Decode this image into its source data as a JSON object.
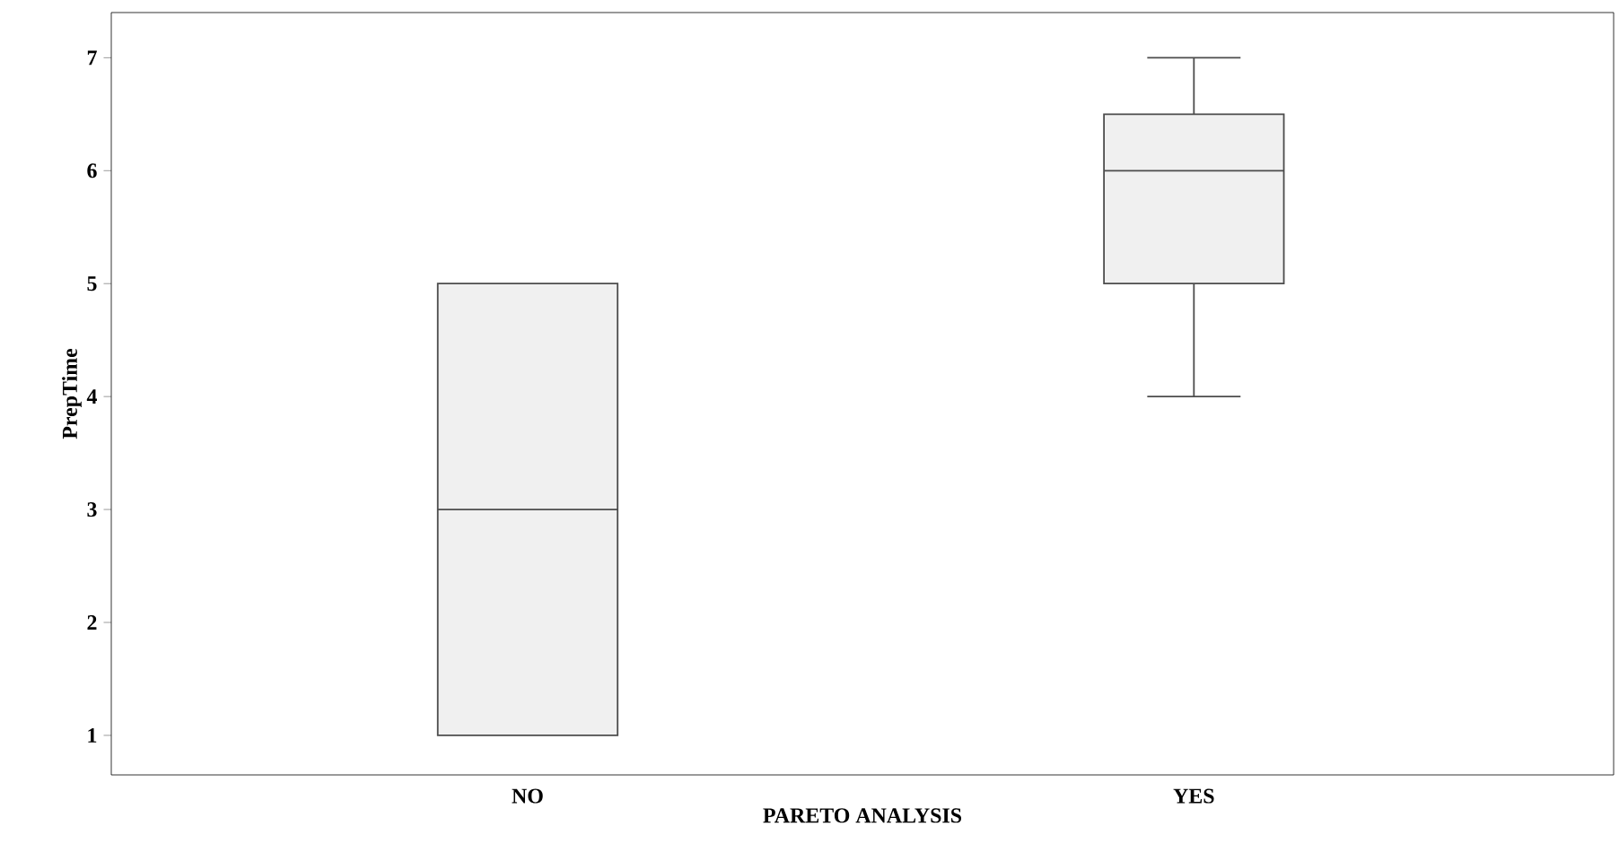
{
  "chart_data": {
    "type": "box",
    "xlabel": "PARETO ANALYSIS",
    "ylabel": "PrepTime",
    "categories": [
      "NO",
      "YES"
    ],
    "color": "#f0f0f0",
    "boxes": [
      {
        "low": 1,
        "q1": 1,
        "median": 3,
        "q3": 5,
        "high": 5
      },
      {
        "low": 4,
        "q1": 5,
        "median": 6,
        "q3": 6.5,
        "high": 7
      }
    ],
    "ylim": [
      0.65,
      7.4
    ],
    "yticks": [
      1,
      2,
      3,
      4,
      5,
      6,
      7
    ],
    "grid": false
  }
}
